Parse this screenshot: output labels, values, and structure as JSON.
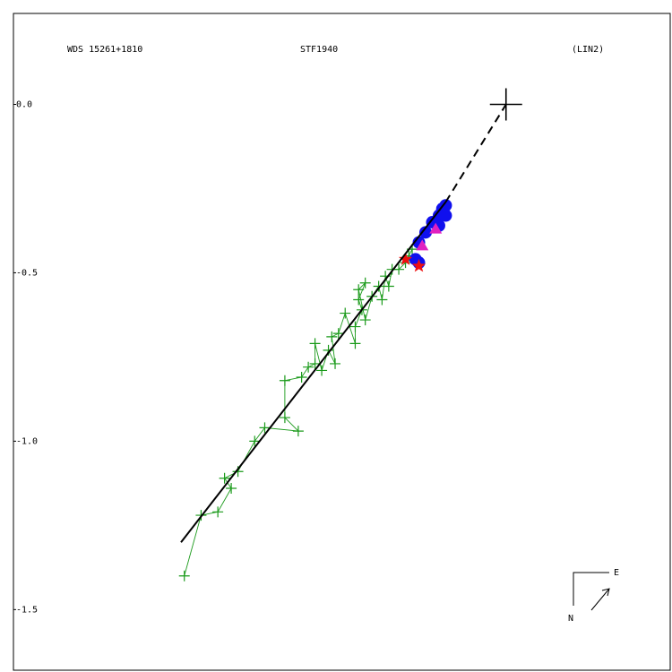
{
  "chart_data": {
    "type": "scatter",
    "wds_id": "WDS 15261+1810",
    "title": "STF1940",
    "reference": "(LIN2)",
    "compass": {
      "east": "E",
      "north": "N"
    },
    "xlim": [
      -1.47,
      0.49
    ],
    "ylim": [
      -1.68,
      0.27
    ],
    "yticks": [
      {
        "value": 0,
        "label": "0.0"
      },
      -0.5,
      {
        "value": -1,
        "label": "-1.0"
      },
      -1.5
    ],
    "series": [
      {
        "marker": "plus",
        "color": "#1a9a1a",
        "connect": true,
        "x": [
          -0.96,
          -0.91,
          -0.86,
          -0.82,
          -0.84,
          -0.8,
          -0.75,
          -0.72,
          -0.62,
          -0.66,
          -0.66,
          -0.61,
          -0.59,
          -0.57,
          -0.57,
          -0.55,
          -0.53,
          -0.51,
          -0.52,
          -0.5,
          -0.48,
          -0.45,
          -0.45,
          -0.43,
          -0.44,
          -0.42,
          -0.44,
          -0.42,
          -0.4,
          -0.38,
          -0.37,
          -0.36,
          -0.35,
          -0.34,
          -0.32,
          -0.3,
          -0.29,
          -0.28
        ],
        "y": [
          -1.4,
          -1.22,
          -1.21,
          -1.14,
          -1.11,
          -1.09,
          -1.0,
          -0.96,
          -0.97,
          -0.93,
          -0.82,
          -0.81,
          -0.78,
          -0.77,
          -0.71,
          -0.79,
          -0.73,
          -0.77,
          -0.69,
          -0.68,
          -0.62,
          -0.71,
          -0.66,
          -0.61,
          -0.58,
          -0.53,
          -0.55,
          -0.64,
          -0.57,
          -0.54,
          -0.58,
          -0.51,
          -0.54,
          -0.49,
          -0.49,
          -0.47,
          -0.45,
          -0.43
        ]
      },
      {
        "marker": "circle",
        "color": "#1010ee",
        "x": [
          -0.27,
          -0.26,
          -0.26,
          -0.24,
          -0.22,
          -0.2,
          -0.19,
          -0.18,
          -0.18,
          -0.2
        ],
        "y": [
          -0.46,
          -0.47,
          -0.41,
          -0.38,
          -0.35,
          -0.33,
          -0.31,
          -0.3,
          -0.33,
          -0.36
        ]
      },
      {
        "marker": "triangle",
        "color": "#e020c0",
        "x": [
          -0.25,
          -0.21
        ],
        "y": [
          -0.42,
          -0.37
        ]
      },
      {
        "marker": "star",
        "color": "#ee1010",
        "x": [
          -0.3,
          -0.26
        ],
        "y": [
          -0.46,
          -0.48
        ]
      },
      {
        "marker": "line",
        "color": "#000000",
        "dash": false,
        "x": [
          -0.97,
          -0.18
        ],
        "y": [
          -1.3,
          -0.29
        ]
      },
      {
        "marker": "line",
        "color": "#000000",
        "dash": true,
        "x": [
          -0.18,
          0
        ],
        "y": [
          -0.29,
          0
        ]
      },
      {
        "marker": "cross",
        "color": "#000000",
        "x": [
          0
        ],
        "y": [
          0
        ]
      }
    ]
  }
}
